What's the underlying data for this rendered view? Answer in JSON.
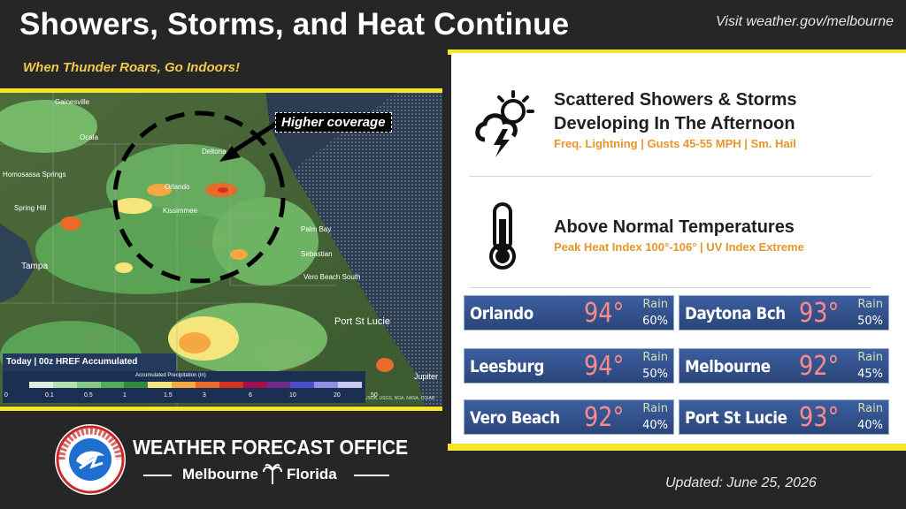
{
  "header": {
    "title": "Showers, Storms, and Heat Continue",
    "visit": "Visit weather.gov/melbourne",
    "subtitle": "When Thunder Roars, Go Indoors!"
  },
  "map": {
    "callout": "Higher coverage",
    "legend_title": "Today | 00z HREF Accumulated Precipitation",
    "legend_scale_title": "Accumulated Precipitation (in)",
    "legend_ticks": [
      "0",
      "0.1",
      "0.5",
      "1",
      "1.5",
      "3",
      "6",
      "10",
      "20",
      "50"
    ],
    "legend_colors": [
      "#dfeedd",
      "#b6dfb0",
      "#86c983",
      "#4fae56",
      "#2e8a3c",
      "#f6e57b",
      "#f5a742",
      "#ea6a2a",
      "#d7301f",
      "#a50f4d",
      "#6e2a8a",
      "#4b4fc9",
      "#8f8fe8",
      "#c9c9f5"
    ],
    "cities": [
      "Gainesville",
      "Ocala",
      "Deltona",
      "Orlando",
      "Homosassa Springs",
      "Spring Hill",
      "Kissimmee",
      "Palm Bay",
      "Tampa",
      "Sebastian",
      "Vero Beach South",
      "Port St Lucie",
      "Jupiter"
    ],
    "attribution": "USDA, USGS, NGA, NASA, CGIAR"
  },
  "panel": {
    "storms": {
      "title_line1": "Scattered Showers & Storms",
      "title_line2": "Developing In The Afternoon",
      "sub": "Freq. Lightning | Gusts 45-55 MPH | Sm. Hail"
    },
    "heat": {
      "title": "Above Normal Temperatures",
      "sub": "Peak Heat Index 100°-106° | UV Index Extreme"
    },
    "forecast": [
      {
        "name": "Orlando",
        "temp": "94°",
        "rain_label": "Rain",
        "rain": "60%"
      },
      {
        "name": "Daytona Bch",
        "temp": "93°",
        "rain_label": "Rain",
        "rain": "50%"
      },
      {
        "name": "Leesburg",
        "temp": "94°",
        "rain_label": "Rain",
        "rain": "50%"
      },
      {
        "name": "Melbourne",
        "temp": "92°",
        "rain_label": "Rain",
        "rain": "45%"
      },
      {
        "name": "Vero Beach",
        "temp": "92°",
        "rain_label": "Rain",
        "rain": "40%"
      },
      {
        "name": "Port St Lucie",
        "temp": "93°",
        "rain_label": "Rain",
        "rain": "40%"
      }
    ]
  },
  "footer": {
    "office": "WEATHER FORECAST OFFICE",
    "city": "Melbourne",
    "state": "Florida",
    "updated": "Updated: June 25, 2026",
    "seal_text": "NATIONAL WEATHER SERVICE"
  },
  "colors": {
    "accent_yellow": "#f5e52b",
    "subtitle_gold": "#f2c94c",
    "detail_orange": "#e8962a",
    "temp_red": "#ff8a8a",
    "tile_blue": "#2f4e88"
  }
}
